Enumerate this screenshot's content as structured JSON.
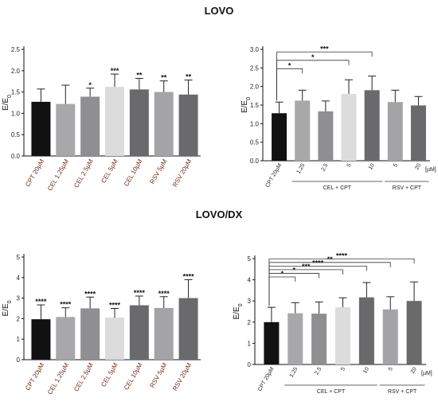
{
  "titles": {
    "top": "LOVO",
    "bottom": "LOVO/DX"
  },
  "y_label": "E/E",
  "y_label_sub": "0",
  "colors": [
    "#111111",
    "#a8a8aa",
    "#8f8f91",
    "#dcdcdc",
    "#6a6a6c",
    "#a4a4a6",
    "#6a6a6c"
  ],
  "chart_data": [
    {
      "type": "bar",
      "panel": "LOVO-left",
      "categories": [
        "CPT 20µM",
        "CEL 1.25µM",
        "CEL 2.5µM",
        "CEL 5µM",
        "CEL 10µM",
        "RSV 5µM",
        "RSV 20µM"
      ],
      "values": [
        1.27,
        1.22,
        1.39,
        1.62,
        1.56,
        1.5,
        1.44
      ],
      "errors": [
        0.3,
        0.44,
        0.2,
        0.3,
        0.26,
        0.26,
        0.34
      ],
      "significance": [
        "",
        "",
        "*",
        "***",
        "**",
        "**",
        "**"
      ],
      "ylim": [
        0,
        2.5
      ],
      "yticks": [
        "0.0",
        "0.5",
        "1.0",
        "1.5",
        "2.0",
        "2.5"
      ]
    },
    {
      "type": "bar",
      "panel": "LOVO-right",
      "categories": [
        "CPT 20µM",
        "1.25",
        "2.5",
        "5",
        "10",
        "5",
        "20"
      ],
      "values": [
        1.28,
        1.62,
        1.33,
        1.8,
        1.9,
        1.58,
        1.49
      ],
      "errors": [
        0.3,
        0.28,
        0.28,
        0.38,
        0.38,
        0.32,
        0.24
      ],
      "ylim": [
        0,
        3.0
      ],
      "yticks": [
        "0.0",
        "0.5",
        "1.0",
        "1.5",
        "2.0",
        "2.5",
        "3.0"
      ],
      "unit": "µM",
      "groups": [
        {
          "label": "CEL + CPT",
          "from": 1,
          "to": 4
        },
        {
          "label": "RSV + CPT",
          "from": 5,
          "to": 6
        }
      ],
      "brackets": [
        {
          "to": 1,
          "label": "*"
        },
        {
          "to": 3,
          "label": "*"
        },
        {
          "to": 4,
          "label": "***"
        }
      ]
    },
    {
      "type": "bar",
      "panel": "LOVODX-left",
      "categories": [
        "CPT 20µM",
        "CEL 1.25µM",
        "CEL 2.5µM",
        "CEL 5µM",
        "CEL 10µM",
        "RSV 5µM",
        "RSV 20µM"
      ],
      "values": [
        1.97,
        2.08,
        2.5,
        2.05,
        2.65,
        2.52,
        3.0
      ],
      "errors": [
        0.7,
        0.45,
        0.55,
        0.45,
        0.45,
        0.55,
        0.9
      ],
      "significance": [
        "****",
        "****",
        "****",
        "****",
        "****",
        "****",
        "****"
      ],
      "ylim": [
        0,
        5
      ],
      "yticks": [
        "0",
        "1",
        "2",
        "3",
        "4",
        "5"
      ]
    },
    {
      "type": "bar",
      "panel": "LOVODX-right",
      "categories": [
        "CPT 20µM",
        "1.25",
        "2.5",
        "5",
        "10",
        "5",
        "20"
      ],
      "values": [
        2.0,
        2.42,
        2.4,
        2.7,
        3.17,
        2.6,
        3.0
      ],
      "errors": [
        0.7,
        0.5,
        0.55,
        0.45,
        0.7,
        0.6,
        0.9
      ],
      "ylim": [
        0,
        5
      ],
      "yticks": [
        "0",
        "1",
        "2",
        "3",
        "4",
        "5"
      ],
      "unit": "µM",
      "groups": [
        {
          "label": "CEL + CPT",
          "from": 1,
          "to": 4
        },
        {
          "label": "RSV + CPT",
          "from": 5,
          "to": 6
        }
      ],
      "brackets": [
        {
          "to": 1,
          "label": "*"
        },
        {
          "to": 2,
          "label": "*"
        },
        {
          "to": 3,
          "label": "***"
        },
        {
          "to": 4,
          "label": "****"
        },
        {
          "to": 5,
          "label": "**"
        },
        {
          "to": 6,
          "label": "****"
        }
      ]
    }
  ]
}
